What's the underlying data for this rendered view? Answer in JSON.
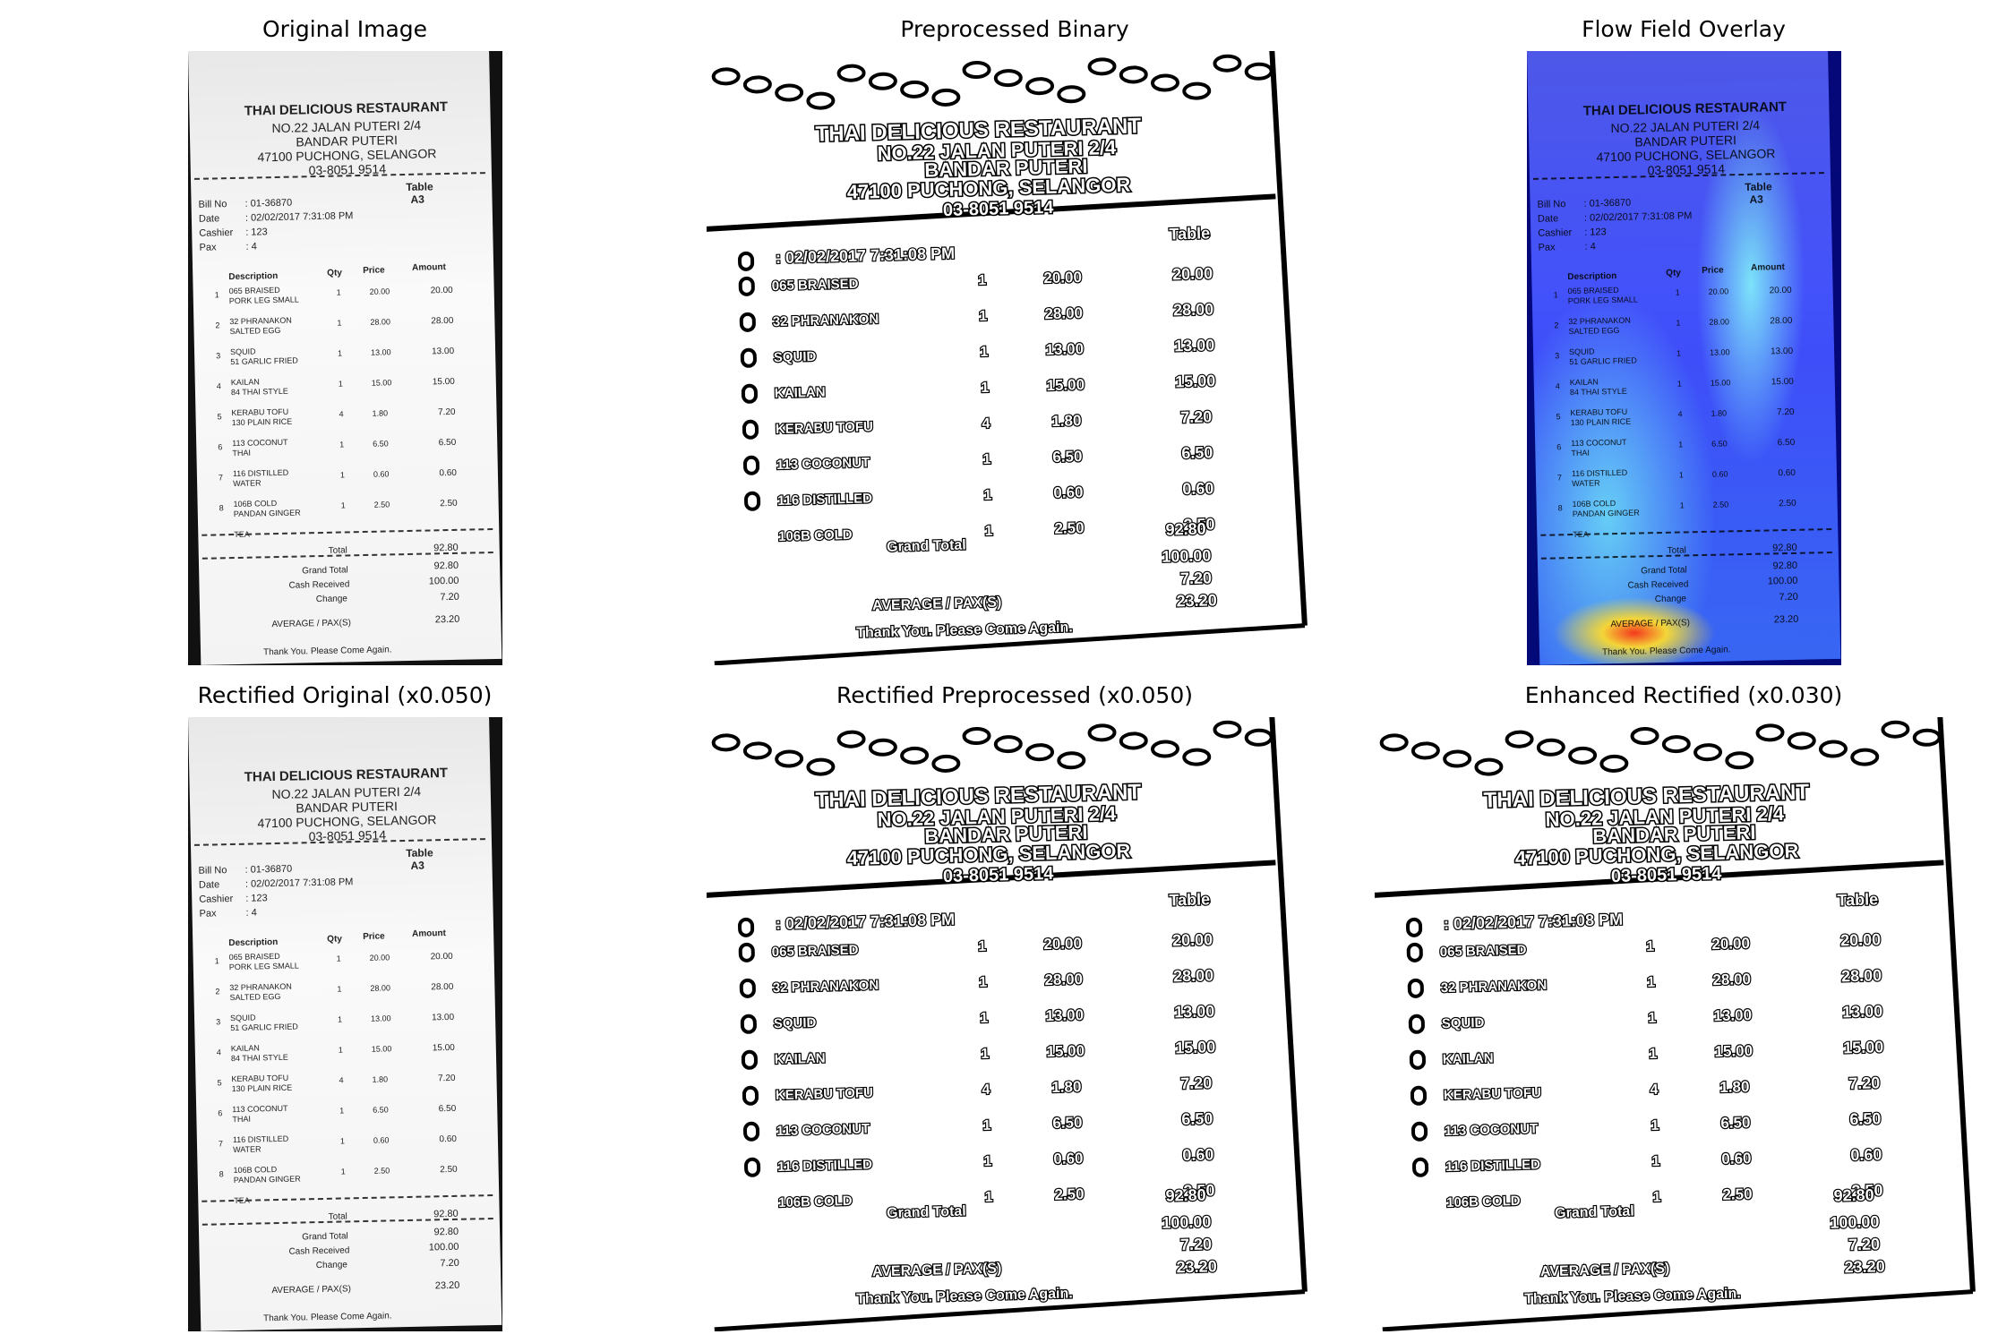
{
  "titles": {
    "original": "Original Image",
    "preprocessed": "Preprocessed Binary",
    "flow": "Flow Field Overlay",
    "rect_original": "Rectified Original (x0.050)",
    "rect_pre": "Rectified Preprocessed (x0.050)",
    "enhanced": "Enhanced Rectified (x0.030)"
  },
  "receipt": {
    "name": "THAI DELICIOUS RESTAURANT",
    "addr1": "NO.22 JALAN PUTERI 2/4",
    "addr2": "BANDAR PUTERI",
    "addr3": "47100 PUCHONG, SELANGOR",
    "phone": "03-8051 9514",
    "table_label": "Table",
    "table_value": "A3",
    "bill_label": "Bill No",
    "bill_value": ": 01-36870",
    "date_label": "Date",
    "date_value": ": 02/02/2017 7:31:08 PM",
    "cashier_label": "Cashier",
    "cashier_value": ": 123",
    "pax_label": "Pax",
    "pax_value": ": 4",
    "col_desc": "Description",
    "col_qty": "Qty",
    "col_price": "Price",
    "col_amount": "Amount",
    "items": [
      {
        "no": "1",
        "desc": "065 BRAISED",
        "desc2": "PORK LEG SMALL",
        "qty": "1",
        "price": "20.00",
        "amount": "20.00"
      },
      {
        "no": "2",
        "desc": "32 PHRANAKON",
        "desc2": "SALTED EGG",
        "qty": "1",
        "price": "28.00",
        "amount": "28.00"
      },
      {
        "no": "3",
        "desc": "SQUID",
        "desc2": "51 GARLIC FRIED",
        "qty": "1",
        "price": "13.00",
        "amount": "13.00"
      },
      {
        "no": "4",
        "desc": "KAILAN",
        "desc2": "84 THAI STYLE",
        "qty": "1",
        "price": "15.00",
        "amount": "15.00"
      },
      {
        "no": "5",
        "desc": "KERABU TOFU",
        "desc2": "130 PLAIN RICE",
        "qty": "4",
        "price": "1.80",
        "amount": "7.20"
      },
      {
        "no": "6",
        "desc": "113 COCONUT",
        "desc2": "THAI",
        "qty": "1",
        "price": "6.50",
        "amount": "6.50"
      },
      {
        "no": "7",
        "desc": "116 DISTILLED",
        "desc2": "WATER",
        "qty": "1",
        "price": "0.60",
        "amount": "0.60"
      },
      {
        "no": "8",
        "desc": "106B COLD",
        "desc2": "PANDAN GINGER",
        "qty": "1",
        "price": "2.50",
        "amount": "2.50"
      }
    ],
    "tea": "TEA",
    "total_label": "Total",
    "total_value": "92.80",
    "grand_label": "Grand Total",
    "grand_value": "92.80",
    "cash_label": "Cash Received",
    "cash_value": "100.00",
    "change_label": "Change",
    "change_value": "7.20",
    "avg_label": "AVERAGE / PAX(S)",
    "avg_value": "23.20",
    "thanks": "Thank You. Please Come Again."
  },
  "colors": {
    "heat_high": "#ff3b1f",
    "heat_mid": "#ffe03a",
    "heat_low": "#2b3bff",
    "heat_bg": "#0a1478"
  }
}
